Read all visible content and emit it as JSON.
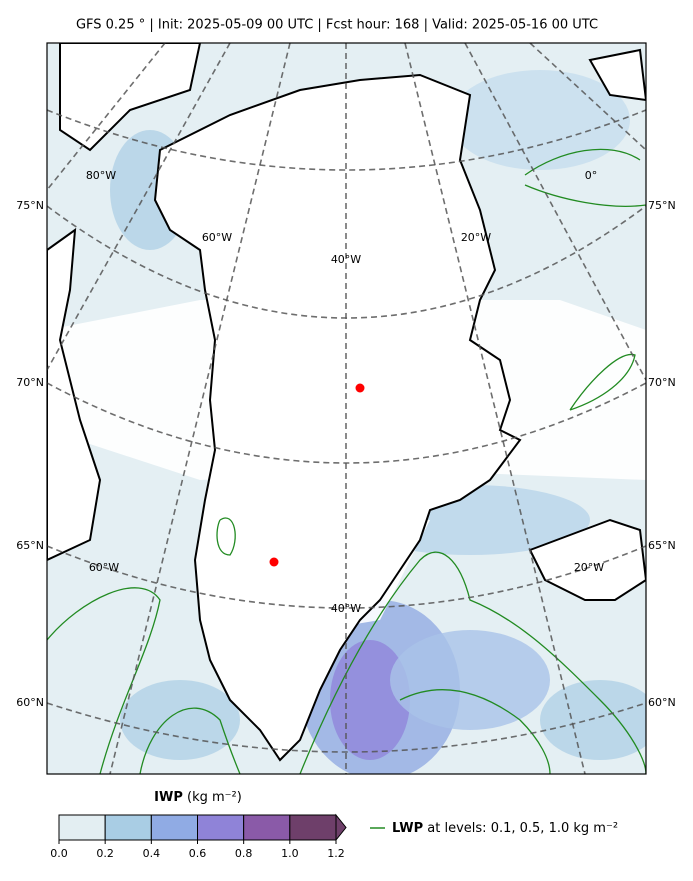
{
  "title": "GFS 0.25 °  |  Init: 2025-05-09 00 UTC  |  Fcst hour: 168  |  Valid: 2025-05-16 00 UTC",
  "map": {
    "lat_labels": [
      "75°N",
      "70°N",
      "65°N",
      "60°N"
    ],
    "lon_labels_north": [
      "80°W",
      "60°W",
      "40°W",
      "20°W",
      "0°"
    ],
    "lon_labels_south": [
      "60°W",
      "40°W",
      "20°W"
    ]
  },
  "colorbar": {
    "label_bold": "IWP",
    "label_unit": "(kg m⁻²)",
    "lim": [
      0,
      1.2
    ],
    "ticks": [
      {
        "value": 0,
        "label": "0.0"
      },
      0.2,
      0.4,
      0.6,
      0.8,
      {
        "value": 1,
        "label": "1.0"
      },
      1.2
    ],
    "colors": [
      "#e3eef2",
      "#a9cde4",
      "#90abe4",
      "#8f83d8",
      "#8a5aa8",
      "#6e3f6a"
    ]
  },
  "legend": {
    "name_bold": "LWP",
    "text": "at levels: 0.1, 0.5, 1.0  kg m⁻²",
    "color": "#228b22"
  }
}
